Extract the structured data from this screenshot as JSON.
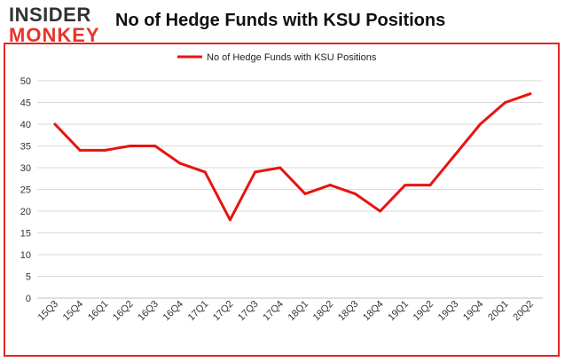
{
  "logo": {
    "line1": "INSIDER",
    "line2": "MONKEY"
  },
  "chart_data": {
    "type": "line",
    "title": "No of Hedge Funds with KSU Positions",
    "xlabel": "",
    "ylabel": "",
    "categories": [
      "15Q3",
      "15Q4",
      "16Q1",
      "16Q2",
      "16Q3",
      "16Q4",
      "17Q1",
      "17Q2",
      "17Q3",
      "17Q4",
      "18Q1",
      "18Q2",
      "18Q3",
      "18Q4",
      "19Q1",
      "19Q2",
      "19Q3",
      "19Q4",
      "20Q1",
      "20Q2"
    ],
    "series": [
      {
        "name": "No of Hedge Funds with KSU Positions",
        "values": [
          40,
          34,
          34,
          35,
          35,
          31,
          29,
          18,
          29,
          30,
          24,
          26,
          24,
          20,
          26,
          26,
          33,
          40,
          45,
          47
        ]
      }
    ],
    "ylim": [
      0,
      50
    ],
    "yticks": [
      0,
      5,
      10,
      15,
      20,
      25,
      30,
      35,
      40,
      45,
      50
    ],
    "grid": "horizontal",
    "legend": "top-center",
    "line_color": "#e8130f",
    "grid_color": "#d9d9d9",
    "frame_color": "#e52521"
  }
}
